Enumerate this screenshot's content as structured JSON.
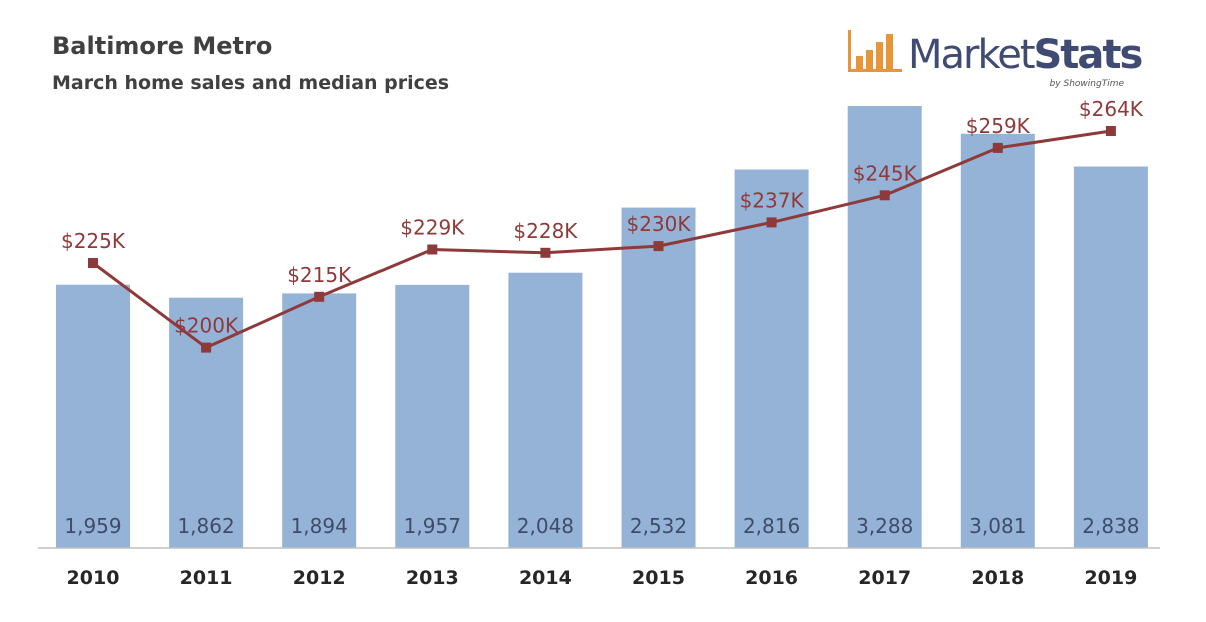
{
  "header": {
    "title": "Baltimore Metro",
    "subtitle": "March home sales and median prices"
  },
  "logo": {
    "market": "Market",
    "stats": "Stats",
    "byline": "by ShowingTime",
    "accent_color": "#e8953a",
    "text_color": "#404b73"
  },
  "chart_data": {
    "type": "bar",
    "title": "Baltimore Metro",
    "subtitle": "March home sales and median prices",
    "categories": [
      "2010",
      "2011",
      "2012",
      "2013",
      "2014",
      "2015",
      "2016",
      "2017",
      "2018",
      "2019"
    ],
    "series": [
      {
        "type": "bar",
        "values": [
          1959,
          1862,
          1894,
          1957,
          2048,
          2532,
          2816,
          3288,
          3081,
          2838
        ],
        "labels": [
          "1,959",
          "1,862",
          "1,894",
          "1,957",
          "2,048",
          "2,532",
          "2,816",
          "3,288",
          "3,081",
          "2,838"
        ],
        "color": "#95b3d7"
      },
      {
        "type": "line",
        "values": [
          225,
          200,
          215,
          229,
          228,
          230,
          237,
          245,
          259,
          264
        ],
        "labels": [
          "$225K",
          "$200K",
          "$215K",
          "$229K",
          "$228K",
          "$230K",
          "$237K",
          "$245K",
          "$259K",
          "$264K"
        ],
        "color": "#8e3a3a"
      }
    ],
    "bar_axis_range": [
      0,
      3500
    ],
    "line_axis_range": [
      175,
      275
    ],
    "grid": false,
    "legend": "none"
  }
}
